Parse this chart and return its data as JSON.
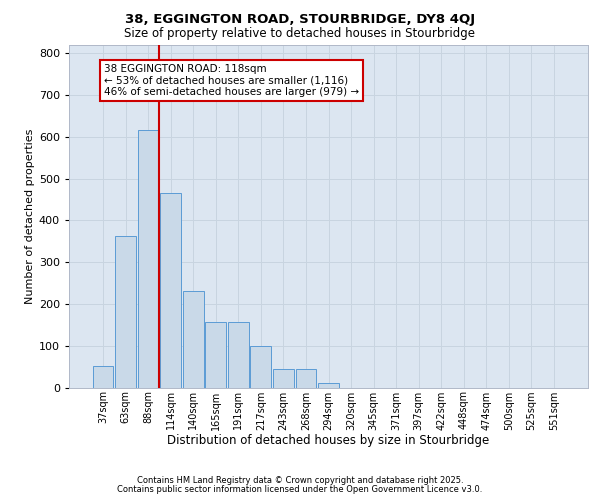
{
  "title_line1": "38, EGGINGTON ROAD, STOURBRIDGE, DY8 4QJ",
  "title_line2": "Size of property relative to detached houses in Stourbridge",
  "xlabel": "Distribution of detached houses by size in Stourbridge",
  "ylabel": "Number of detached properties",
  "categories": [
    "37sqm",
    "63sqm",
    "88sqm",
    "114sqm",
    "140sqm",
    "165sqm",
    "191sqm",
    "217sqm",
    "243sqm",
    "268sqm",
    "294sqm",
    "320sqm",
    "345sqm",
    "371sqm",
    "397sqm",
    "422sqm",
    "448sqm",
    "474sqm",
    "500sqm",
    "525sqm",
    "551sqm"
  ],
  "values": [
    52,
    362,
    617,
    465,
    232,
    157,
    157,
    100,
    45,
    45,
    10,
    0,
    0,
    0,
    0,
    0,
    0,
    0,
    0,
    0,
    0
  ],
  "bar_fill_color": "#c9d9e8",
  "bar_edge_color": "#5b9bd5",
  "grid_color": "#c8d4e0",
  "background_color": "#dce6f1",
  "vline_index": 2.5,
  "vline_color": "#cc0000",
  "annotation_text": "38 EGGINGTON ROAD: 118sqm\n← 53% of detached houses are smaller (1,116)\n46% of semi-detached houses are larger (979) →",
  "annotation_edge_color": "#cc0000",
  "footer_line1": "Contains HM Land Registry data © Crown copyright and database right 2025.",
  "footer_line2": "Contains public sector information licensed under the Open Government Licence v3.0.",
  "ylim_max": 820,
  "yticks": [
    0,
    100,
    200,
    300,
    400,
    500,
    600,
    700,
    800
  ]
}
